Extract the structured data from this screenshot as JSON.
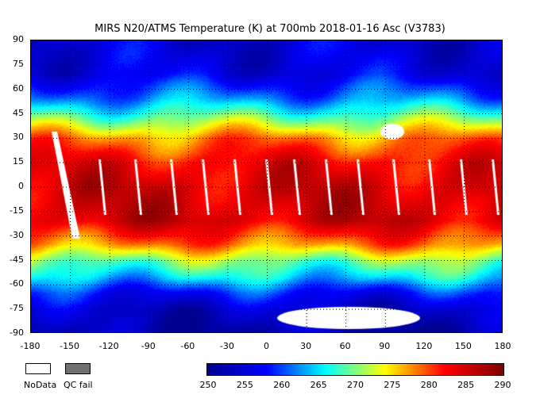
{
  "title": "MIRS N20/ATMS Temperature (K) at 700mb 2018-01-16 Asc  (V3783)",
  "map": {
    "lat_ticks": [
      "90",
      "75",
      "60",
      "45",
      "30",
      "15",
      "0",
      "-15",
      "-30",
      "-45",
      "-60",
      "-75",
      "-90"
    ],
    "lon_ticks": [
      "-180",
      "-150",
      "-120",
      "-90",
      "-60",
      "-30",
      "0",
      "30",
      "60",
      "90",
      "120",
      "150",
      "180"
    ],
    "lon_range": [
      -180,
      180
    ],
    "lat_range": [
      -90,
      90
    ],
    "grid": "dotted"
  },
  "legend": {
    "nodata_label": "NoData",
    "nodata_color": "#ffffff",
    "qcfail_label": "QC fail",
    "qcfail_color": "#707070",
    "colorbar_ticks": [
      "250",
      "255",
      "260",
      "265",
      "270",
      "275",
      "280",
      "285",
      "290"
    ],
    "colorbar_range": [
      250,
      290
    ],
    "colormap": [
      "#00008f",
      "#0000ff",
      "#00ffff",
      "#ffff00",
      "#ff0000",
      "#800000"
    ]
  }
}
